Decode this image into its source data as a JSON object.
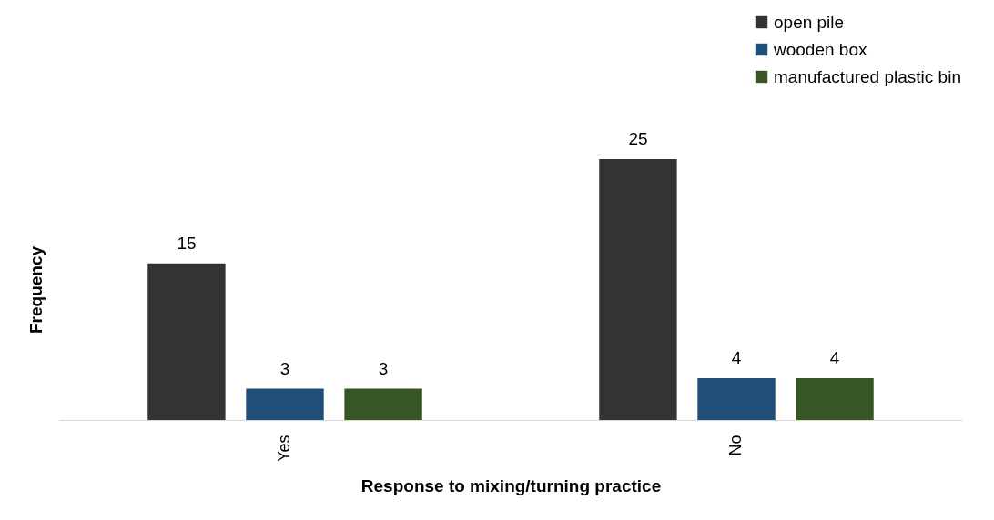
{
  "chart_data": {
    "type": "bar",
    "xlabel": "Response to mixing/turning practice",
    "ylabel": "Frequency",
    "categories": [
      "Yes",
      "No"
    ],
    "series": [
      {
        "name": "open pile",
        "color": "#333333",
        "values": [
          15,
          25
        ]
      },
      {
        "name": "wooden box",
        "color": "#1f4e79",
        "values": [
          3,
          4
        ]
      },
      {
        "name": "manufactured plastic bin",
        "color": "#375623",
        "values": [
          3,
          4
        ]
      }
    ],
    "data_labels": true,
    "legend": "top right",
    "grid": false
  }
}
